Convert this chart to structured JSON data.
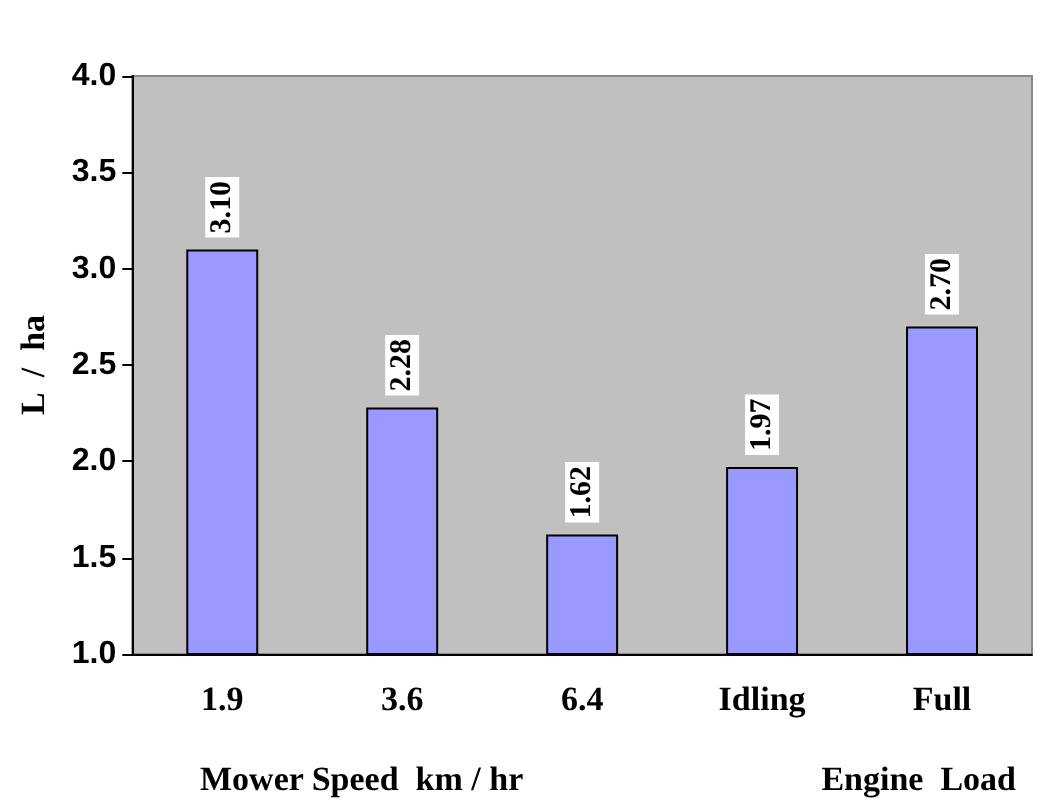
{
  "chart_data": {
    "type": "bar",
    "ylabel": "L  /  ha",
    "xlabel": "Mower Speed  km / hr",
    "annotations": [
      "Engine  Load"
    ],
    "categories": [
      "1.9",
      "3.6",
      "6.4",
      "Idling",
      "Full"
    ],
    "values": [
      3.1,
      2.28,
      1.62,
      1.97,
      2.7
    ],
    "value_labels": [
      "3.10",
      "2.28",
      "1.62",
      "1.97",
      "2.70"
    ],
    "color": "#9999ff",
    "ylim": [
      1,
      4
    ],
    "yticks": [
      {
        "value": 1,
        "label": "1.0"
      },
      {
        "value": 1.5,
        "label": "1.5"
      },
      {
        "value": 2,
        "label": "2.0"
      },
      {
        "value": 2.5,
        "label": "2.5"
      },
      {
        "value": 3,
        "label": "3.0"
      },
      {
        "value": 3.5,
        "label": "3.5"
      },
      {
        "value": 4,
        "label": "4.0"
      }
    ],
    "grid": false
  }
}
